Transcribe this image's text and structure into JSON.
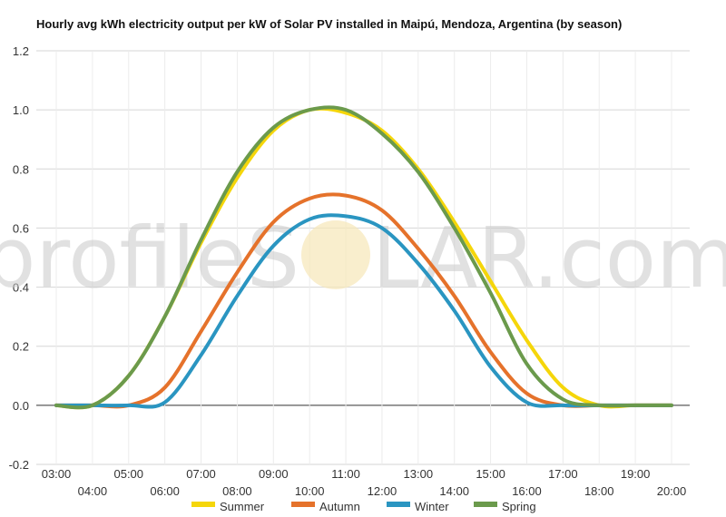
{
  "chart_data": {
    "type": "line",
    "title": "Hourly avg kWh electricity output per kW of Solar PV installed in Maipú, Mendoza, Argentina (by season)",
    "xlabel": "",
    "ylabel": "",
    "x": [
      "03:00",
      "04:00",
      "05:00",
      "06:00",
      "07:00",
      "08:00",
      "09:00",
      "10:00",
      "11:00",
      "12:00",
      "13:00",
      "14:00",
      "15:00",
      "16:00",
      "17:00",
      "18:00",
      "19:00",
      "20:00"
    ],
    "ylim": [
      -0.2,
      1.2
    ],
    "yticks": [
      "-0.2",
      "0.0",
      "0.2",
      "0.4",
      "0.6",
      "0.8",
      "1.0",
      "1.2"
    ],
    "grid": true,
    "legend_position": "bottom",
    "watermark": {
      "left": "profileS",
      "right": "LAR.com"
    },
    "series": [
      {
        "name": "Summer",
        "color": "#f5d60a",
        "values": [
          0.0,
          0.0,
          0.1,
          0.3,
          0.55,
          0.77,
          0.93,
          1.0,
          0.99,
          0.93,
          0.8,
          0.62,
          0.42,
          0.22,
          0.06,
          0.0,
          0.0,
          0.0
        ]
      },
      {
        "name": "Autumn",
        "color": "#e5722b",
        "values": [
          0.0,
          0.0,
          0.0,
          0.06,
          0.25,
          0.45,
          0.62,
          0.7,
          0.71,
          0.66,
          0.53,
          0.37,
          0.18,
          0.04,
          0.0,
          0.0,
          0.0,
          0.0
        ]
      },
      {
        "name": "Winter",
        "color": "#2a95c1",
        "values": [
          0.0,
          0.0,
          0.0,
          0.01,
          0.17,
          0.37,
          0.54,
          0.63,
          0.64,
          0.6,
          0.48,
          0.32,
          0.13,
          0.01,
          0.0,
          0.0,
          0.0,
          0.0
        ]
      },
      {
        "name": "Spring",
        "color": "#6b9a4c",
        "values": [
          0.0,
          0.0,
          0.1,
          0.3,
          0.56,
          0.79,
          0.94,
          1.0,
          1.0,
          0.92,
          0.79,
          0.6,
          0.38,
          0.14,
          0.02,
          0.0,
          0.0,
          0.0
        ]
      }
    ]
  }
}
